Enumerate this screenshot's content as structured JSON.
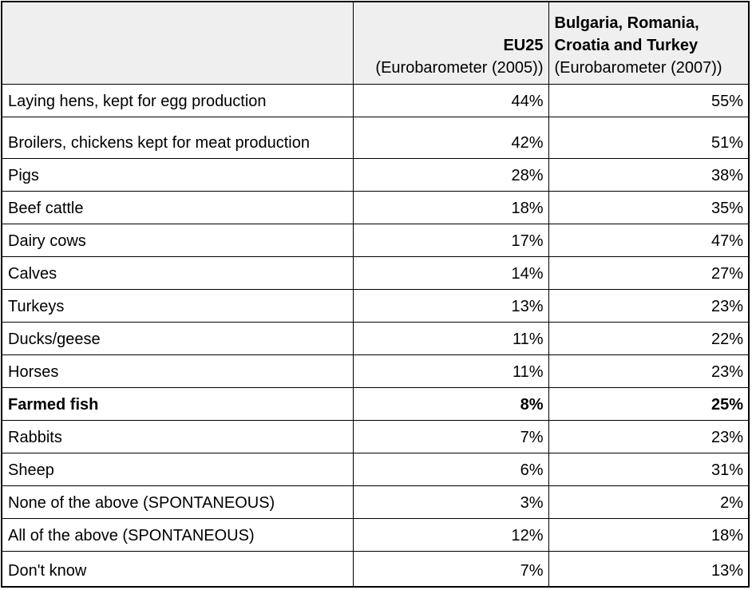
{
  "colors": {
    "header_bg": "#efefef",
    "border": "#000000",
    "text": "#000000",
    "page_bg": "#ffffff"
  },
  "header": {
    "col_label": "",
    "col2_title": "EU25",
    "col2_sub": "(Eurobarometer (2005))",
    "col3_title": "Bulgaria, Romania, Croatia and Turkey",
    "col3_sub": "(Eurobarometer (2007))"
  },
  "rows": [
    {
      "label": "Laying hens, kept for egg production",
      "eu25": "44%",
      "brct": "55%",
      "bold": false
    },
    {
      "label": "Broilers, chickens kept for meat production",
      "eu25": "42%",
      "brct": "51%",
      "bold": false
    },
    {
      "label": "Pigs",
      "eu25": "28%",
      "brct": "38%",
      "bold": false
    },
    {
      "label": "Beef cattle",
      "eu25": "18%",
      "brct": "35%",
      "bold": false
    },
    {
      "label": "Dairy cows",
      "eu25": "17%",
      "brct": "47%",
      "bold": false
    },
    {
      "label": "Calves",
      "eu25": "14%",
      "brct": "27%",
      "bold": false
    },
    {
      "label": "Turkeys",
      "eu25": "13%",
      "brct": "23%",
      "bold": false
    },
    {
      "label": "Ducks/geese",
      "eu25": "11%",
      "brct": "22%",
      "bold": false
    },
    {
      "label": "Horses",
      "eu25": "11%",
      "brct": "23%",
      "bold": false
    },
    {
      "label": "Farmed fish",
      "eu25": "8%",
      "brct": "25%",
      "bold": true
    },
    {
      "label": "Rabbits",
      "eu25": "7%",
      "brct": "23%",
      "bold": false
    },
    {
      "label": "Sheep",
      "eu25": "6%",
      "brct": "31%",
      "bold": false
    },
    {
      "label": "None of the above (SPONTANEOUS)",
      "eu25": "3%",
      "brct": "2%",
      "bold": false
    },
    {
      "label": "All of the above (SPONTANEOUS)",
      "eu25": "12%",
      "brct": "18%",
      "bold": false
    },
    {
      "label": "Don't know",
      "eu25": "7%",
      "brct": "13%",
      "bold": false
    }
  ],
  "chart_data": {
    "type": "table",
    "columns": [
      "",
      "EU25 (Eurobarometer (2005))",
      "Bulgaria, Romania, Croatia and Turkey (Eurobarometer (2007))"
    ],
    "categories": [
      "Laying hens, kept for egg production",
      "Broilers, chickens kept for meat production",
      "Pigs",
      "Beef cattle",
      "Dairy cows",
      "Calves",
      "Turkeys",
      "Ducks/geese",
      "Horses",
      "Farmed fish",
      "Rabbits",
      "Sheep",
      "None of the above (SPONTANEOUS)",
      "All of the above (SPONTANEOUS)",
      "Don't know"
    ],
    "series": [
      {
        "name": "EU25 (Eurobarometer (2005))",
        "values": [
          44,
          42,
          28,
          18,
          17,
          14,
          13,
          11,
          11,
          8,
          7,
          6,
          3,
          12,
          7
        ]
      },
      {
        "name": "Bulgaria, Romania, Croatia and Turkey (Eurobarometer (2007))",
        "values": [
          55,
          51,
          38,
          35,
          47,
          27,
          23,
          22,
          23,
          25,
          23,
          31,
          2,
          18,
          13
        ]
      }
    ],
    "unit": "%",
    "emphasized_row": "Farmed fish"
  }
}
